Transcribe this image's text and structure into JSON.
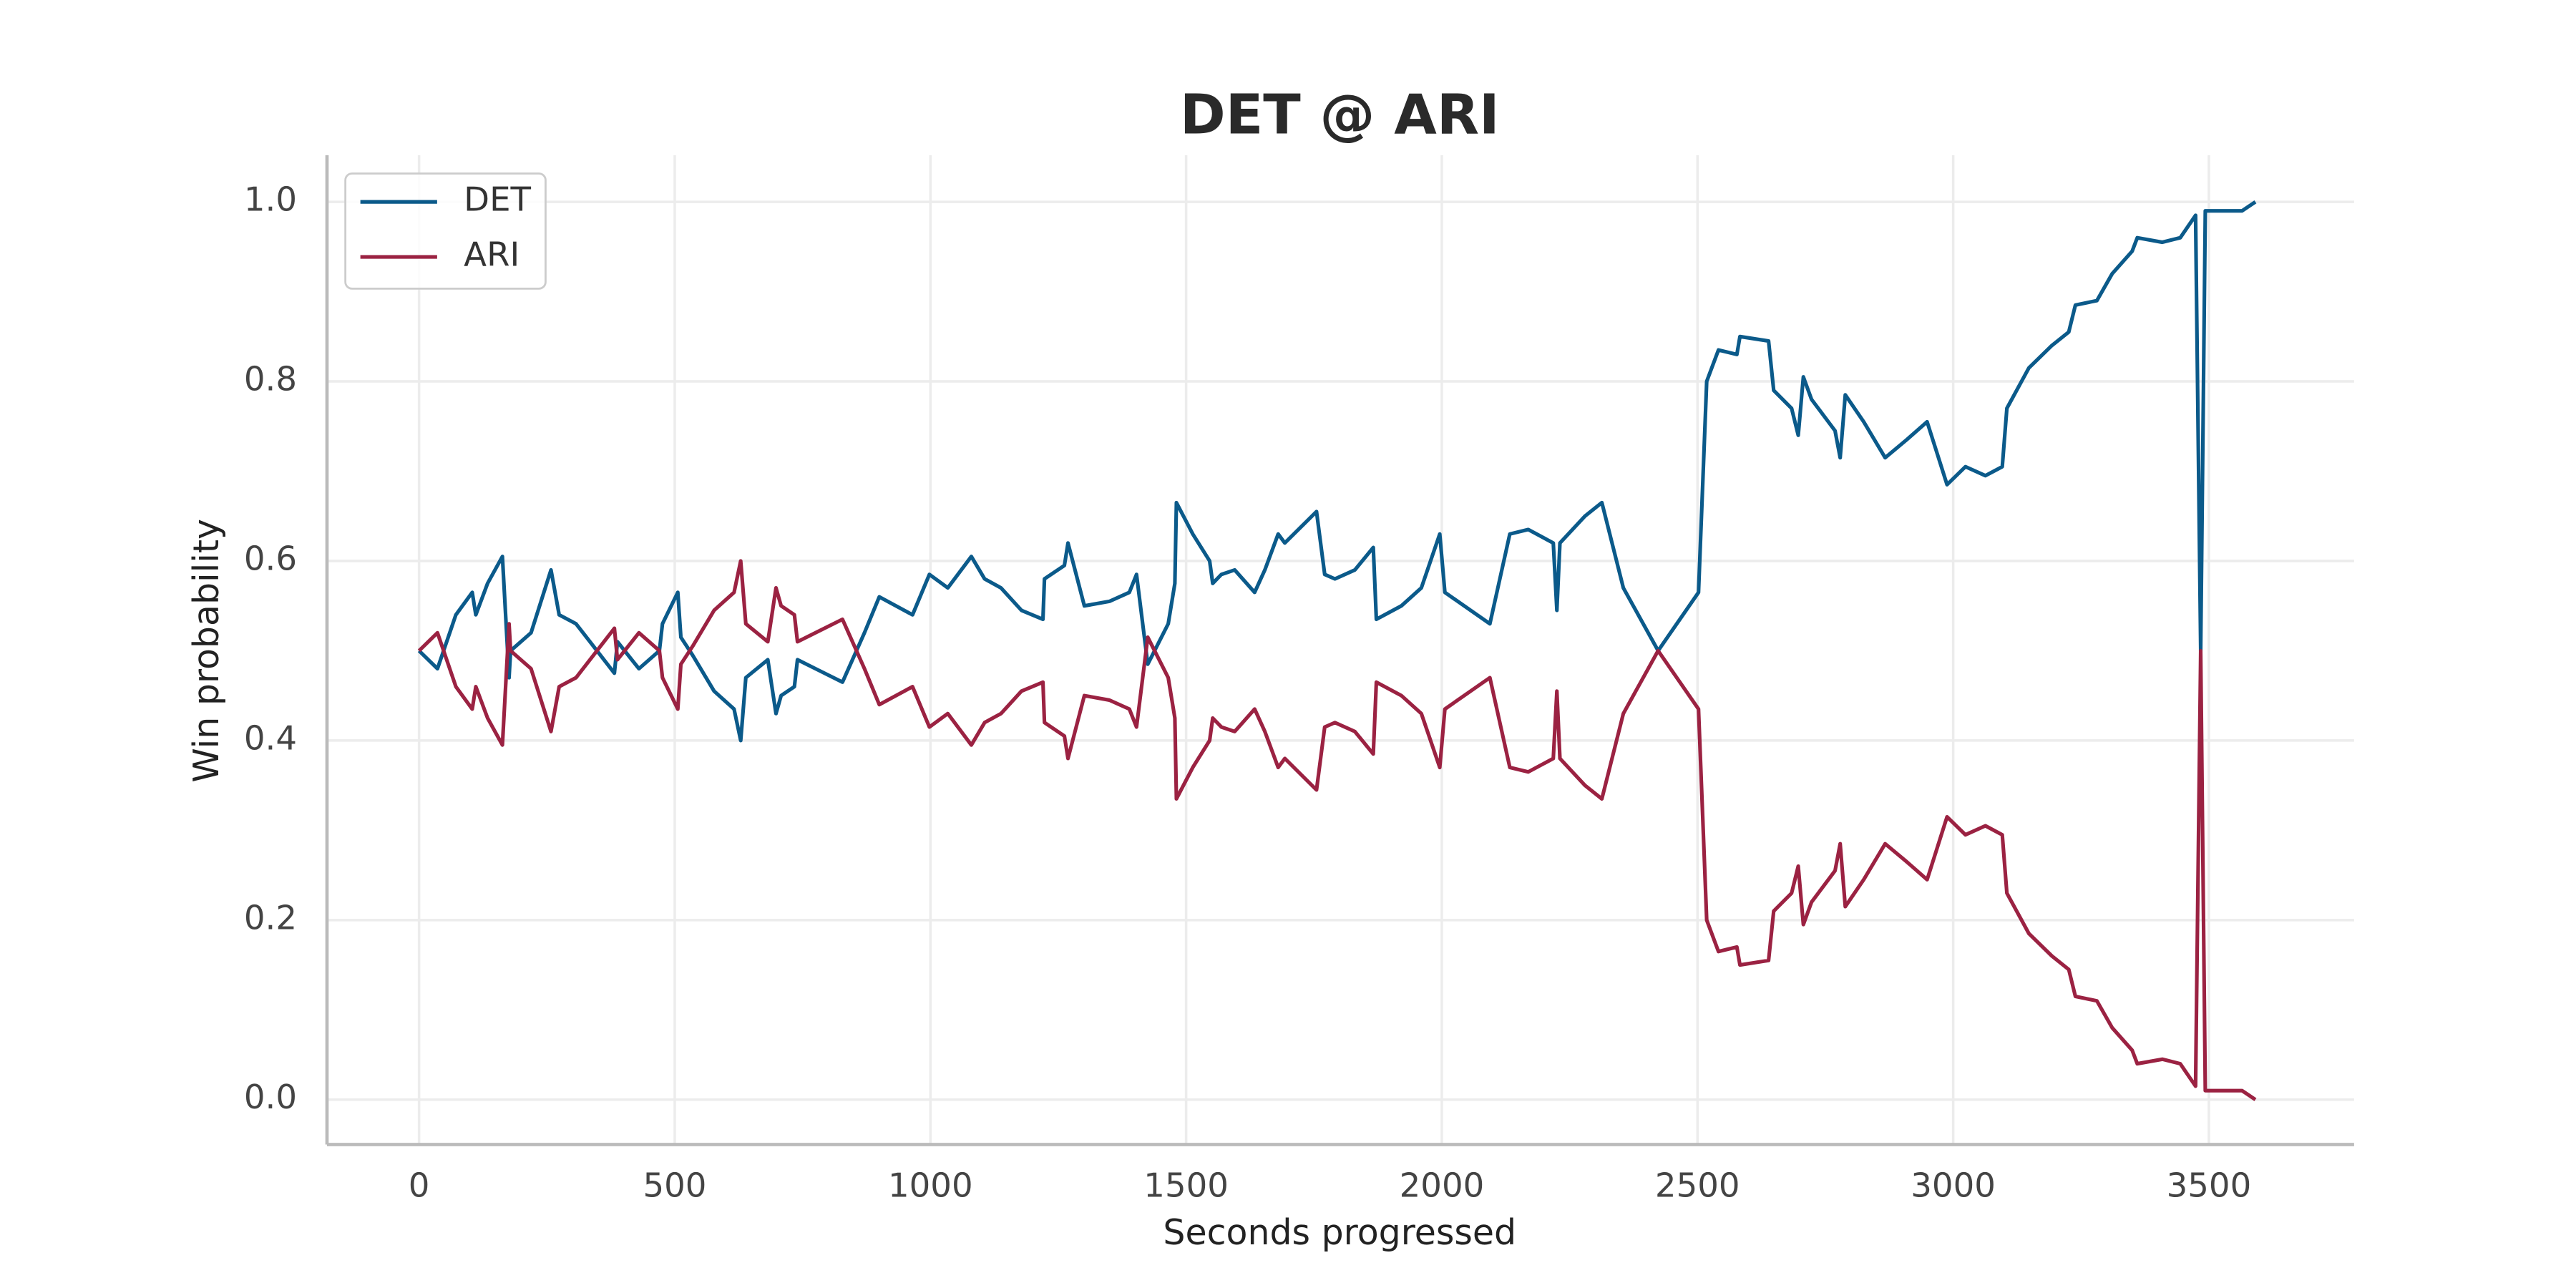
{
  "chart_data": {
    "type": "line",
    "title": "DET @ ARI",
    "xlabel": "Seconds progressed",
    "ylabel": "Win probability",
    "xlim": [
      -180,
      3784
    ],
    "ylim": [
      -0.05,
      1.052
    ],
    "xticks": [
      0,
      500,
      1000,
      1500,
      2000,
      2500,
      3000,
      3500
    ],
    "yticks": [
      {
        "value": 0,
        "label": "0.0"
      },
      0.2,
      0.4,
      0.6,
      0.8,
      {
        "value": 1,
        "label": "1.0"
      }
    ],
    "grid": true,
    "legend": "upper left",
    "x": [
      0,
      36,
      72,
      104,
      111,
      134,
      163,
      176,
      179,
      219,
      258,
      274,
      307,
      382,
      388,
      430,
      470,
      476,
      506,
      512,
      535,
      577,
      616,
      629,
      639,
      682,
      698,
      708,
      734,
      740,
      828,
      871,
      900,
      965,
      998,
      1034,
      1080,
      1106,
      1138,
      1178,
      1220,
      1223,
      1262,
      1269,
      1301,
      1350,
      1389,
      1403,
      1425,
      1465,
      1478,
      1481,
      1513,
      1546,
      1552,
      1569,
      1595,
      1634,
      1654,
      1680,
      1693,
      1755,
      1771,
      1791,
      1830,
      1866,
      1872,
      1921,
      1960,
      1996,
      2006,
      2094,
      2133,
      2169,
      2218,
      2225,
      2231,
      2280,
      2313,
      2355,
      2423,
      2502,
      2518,
      2541,
      2577,
      2583,
      2639,
      2649,
      2684,
      2697,
      2707,
      2723,
      2769,
      2779,
      2789,
      2825,
      2867,
      2909,
      2949,
      2988,
      3024,
      3063,
      3096,
      3105,
      3148,
      3193,
      3226,
      3239,
      3281,
      3311,
      3350,
      3360,
      3409,
      3444,
      3474,
      3484,
      3493,
      3535,
      3565,
      3591
    ],
    "series": [
      {
        "name": "DET",
        "color": "#0b5a8a",
        "values": [
          0.5,
          0.48,
          0.54,
          0.565,
          0.54,
          0.575,
          0.605,
          0.47,
          0.5,
          0.52,
          0.59,
          0.54,
          0.53,
          0.475,
          0.51,
          0.48,
          0.5,
          0.53,
          0.565,
          0.515,
          0.495,
          0.455,
          0.435,
          0.4,
          0.47,
          0.49,
          0.43,
          0.45,
          0.46,
          0.49,
          0.465,
          0.52,
          0.56,
          0.54,
          0.585,
          0.57,
          0.605,
          0.58,
          0.57,
          0.545,
          0.535,
          0.58,
          0.595,
          0.62,
          0.55,
          0.555,
          0.565,
          0.585,
          0.485,
          0.53,
          0.575,
          0.665,
          0.63,
          0.6,
          0.575,
          0.585,
          0.59,
          0.565,
          0.59,
          0.63,
          0.62,
          0.655,
          0.585,
          0.58,
          0.59,
          0.615,
          0.535,
          0.55,
          0.57,
          0.63,
          0.565,
          0.53,
          0.63,
          0.635,
          0.62,
          0.545,
          0.62,
          0.65,
          0.665,
          0.57,
          0.5,
          0.565,
          0.8,
          0.835,
          0.83,
          0.85,
          0.845,
          0.79,
          0.77,
          0.74,
          0.805,
          0.78,
          0.745,
          0.715,
          0.785,
          0.755,
          0.715,
          0.735,
          0.755,
          0.685,
          0.705,
          0.695,
          0.705,
          0.77,
          0.815,
          0.84,
          0.855,
          0.885,
          0.89,
          0.92,
          0.945,
          0.96,
          0.955,
          0.96,
          0.985,
          0.5,
          0.99,
          0.99,
          0.99,
          1.0
        ]
      },
      {
        "name": "ARI",
        "color": "#9b2242",
        "values": [
          0.5,
          0.52,
          0.46,
          0.435,
          0.46,
          0.425,
          0.395,
          0.53,
          0.5,
          0.48,
          0.41,
          0.46,
          0.47,
          0.525,
          0.49,
          0.52,
          0.5,
          0.47,
          0.435,
          0.485,
          0.505,
          0.545,
          0.565,
          0.6,
          0.53,
          0.51,
          0.57,
          0.55,
          0.54,
          0.51,
          0.535,
          0.48,
          0.44,
          0.46,
          0.415,
          0.43,
          0.395,
          0.42,
          0.43,
          0.455,
          0.465,
          0.42,
          0.405,
          0.38,
          0.45,
          0.445,
          0.435,
          0.415,
          0.515,
          0.47,
          0.425,
          0.335,
          0.37,
          0.4,
          0.425,
          0.415,
          0.41,
          0.435,
          0.41,
          0.37,
          0.38,
          0.345,
          0.415,
          0.42,
          0.41,
          0.385,
          0.465,
          0.45,
          0.43,
          0.37,
          0.435,
          0.47,
          0.37,
          0.365,
          0.38,
          0.455,
          0.38,
          0.35,
          0.335,
          0.43,
          0.5,
          0.435,
          0.2,
          0.165,
          0.17,
          0.15,
          0.155,
          0.21,
          0.23,
          0.26,
          0.195,
          0.22,
          0.255,
          0.285,
          0.215,
          0.245,
          0.285,
          0.265,
          0.245,
          0.315,
          0.295,
          0.305,
          0.295,
          0.23,
          0.185,
          0.16,
          0.145,
          0.115,
          0.11,
          0.08,
          0.055,
          0.04,
          0.045,
          0.04,
          0.015,
          0.5,
          0.01,
          0.01,
          0.01,
          0.0
        ]
      }
    ]
  }
}
